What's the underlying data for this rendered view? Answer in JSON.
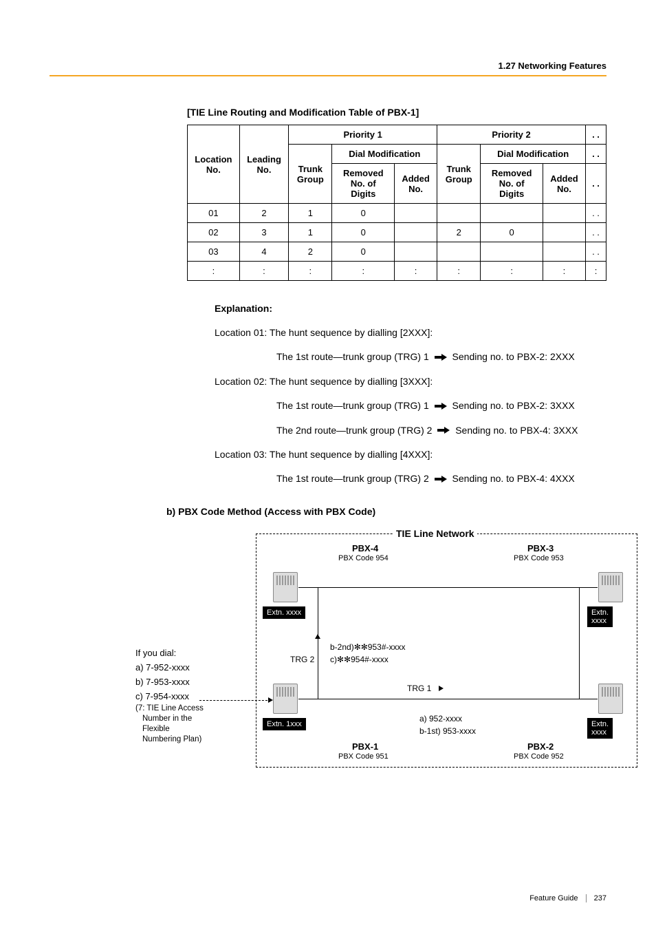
{
  "header": {
    "section": "1.27 Networking Features"
  },
  "table": {
    "title": "[TIE Line Routing and Modification Table of PBX-1]",
    "col_location": "Location No.",
    "col_leading": "Leading No.",
    "col_trunk": "Trunk Group",
    "col_priority1": "Priority 1",
    "col_priority2": "Priority 2",
    "col_dialmod": "Dial Modification",
    "col_removed": "Removed No. of Digits",
    "col_added": "Added No.",
    "dots": ". .",
    "rows": [
      {
        "loc": "01",
        "lead": "2",
        "tg1": "1",
        "rem1": "0",
        "add1": "",
        "tg2": "",
        "rem2": "",
        "add2": "",
        "end": ". ."
      },
      {
        "loc": "02",
        "lead": "3",
        "tg1": "1",
        "rem1": "0",
        "add1": "",
        "tg2": "2",
        "rem2": "0",
        "add2": "",
        "end": ". ."
      },
      {
        "loc": "03",
        "lead": "4",
        "tg1": "2",
        "rem1": "0",
        "add1": "",
        "tg2": "",
        "rem2": "",
        "add2": "",
        "end": ". ."
      },
      {
        "loc": ":",
        "lead": ":",
        "tg1": ":",
        "rem1": ":",
        "add1": ":",
        "tg2": ":",
        "rem2": ":",
        "add2": ":",
        "end": ":"
      }
    ]
  },
  "explanation": {
    "heading": "Explanation:",
    "loc01": "Location 01:  The hunt sequence by dialling [2XXX]:",
    "loc01_r1a": "The 1st route—trunk group (TRG) 1",
    "loc01_r1b": "Sending no. to PBX-2: 2XXX",
    "loc02": "Location 02:  The hunt sequence by dialling [3XXX]:",
    "loc02_r1a": "The 1st route—trunk group (TRG) 1",
    "loc02_r1b": "Sending no. to PBX-2: 3XXX",
    "loc02_r2a": "The 2nd route—trunk group (TRG) 2",
    "loc02_r2b": "Sending no. to PBX-4: 3XXX",
    "loc03": "Location 03:  The hunt sequence by dialling [4XXX]:",
    "loc03_r1a": "The 1st route—trunk group (TRG) 2",
    "loc03_r1b": "Sending no. to PBX-4: 4XXX"
  },
  "subheading": "b) PBX Code Method (Access with PBX Code)",
  "diagram": {
    "title": "TIE Line Network",
    "pbx4": "PBX-4",
    "pbx4_code": "PBX Code 954",
    "pbx3": "PBX-3",
    "pbx3_code": "PBX Code 953",
    "pbx1": "PBX-1",
    "pbx1_code": "PBX Code 951",
    "pbx2": "PBX-2",
    "pbx2_code": "PBX Code 952",
    "extn_x": "Extn. xxxx",
    "extn_1": "Extn. 1xxx",
    "trg1": "TRG 1",
    "trg2": "TRG 2",
    "b2nd": "b-2nd)✻✻953#-xxxx",
    "c_line": "c)✻✻954#-xxxx",
    "a_line": "a) 952-xxxx",
    "b1st": "b-1st) 953-xxxx",
    "dial_intro": "If you dial:",
    "dial_a": "a) 7-952-xxxx",
    "dial_b": "b) 7-953-xxxx",
    "dial_c": "c) 7-954-xxxx",
    "dial_note1": "(7: TIE Line Access",
    "dial_note2": "Number in the",
    "dial_note3": "Flexible",
    "dial_note4": "Numbering Plan)"
  },
  "footer": {
    "guide": "Feature Guide",
    "page": "237"
  }
}
